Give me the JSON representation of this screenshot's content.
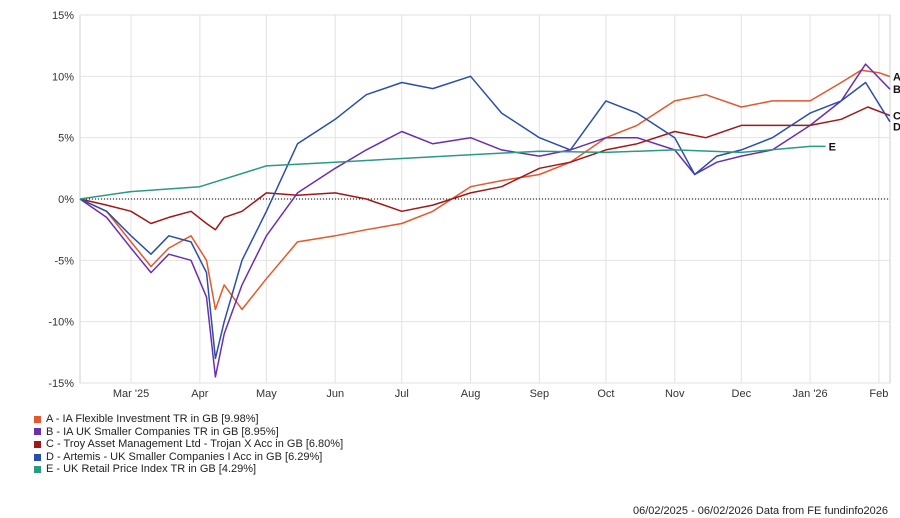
{
  "chart_data": {
    "type": "line",
    "ylim": [
      -15,
      15
    ],
    "yticks": [
      -15,
      -10,
      -5,
      0,
      5,
      10,
      15
    ],
    "ytick_labels": [
      "-15%",
      "-10%",
      "-5%",
      "0%",
      "5%",
      "10%",
      "15%"
    ],
    "xlim": [
      "2025-02-06",
      "2026-02-06"
    ],
    "xticks": [
      {
        "date": "2025-03-01",
        "label": "Mar '25"
      },
      {
        "date": "2025-04-01",
        "label": "Apr"
      },
      {
        "date": "2025-05-01",
        "label": "May"
      },
      {
        "date": "2025-06-01",
        "label": "Jun"
      },
      {
        "date": "2025-07-01",
        "label": "Jul"
      },
      {
        "date": "2025-08-01",
        "label": "Aug"
      },
      {
        "date": "2025-09-01",
        "label": "Sep"
      },
      {
        "date": "2025-10-01",
        "label": "Oct"
      },
      {
        "date": "2025-11-01",
        "label": "Nov"
      },
      {
        "date": "2025-12-01",
        "label": "Dec"
      },
      {
        "date": "2026-01-01",
        "label": "Jan '26"
      },
      {
        "date": "2026-02-01",
        "label": "Feb"
      }
    ],
    "grid": true,
    "legend_position": "bottom-left",
    "series": [
      {
        "name": "A - IA Flexible Investment TR in GB [9.98%]",
        "letter": "A",
        "color": "#e3582c",
        "x": [
          "2025-02-06",
          "2025-02-18",
          "2025-03-01",
          "2025-03-10",
          "2025-03-18",
          "2025-03-28",
          "2025-04-04",
          "2025-04-08",
          "2025-04-12",
          "2025-04-20",
          "2025-05-01",
          "2025-05-15",
          "2025-06-01",
          "2025-06-15",
          "2025-07-01",
          "2025-07-15",
          "2025-08-01",
          "2025-08-15",
          "2025-09-01",
          "2025-09-15",
          "2025-10-01",
          "2025-10-15",
          "2025-11-01",
          "2025-11-15",
          "2025-12-01",
          "2025-12-15",
          "2026-01-01",
          "2026-01-15",
          "2026-01-24",
          "2026-02-01",
          "2026-02-06"
        ],
        "y": [
          0,
          -1,
          -3.5,
          -5.5,
          -4,
          -3,
          -5,
          -9,
          -7,
          -9,
          -6.5,
          -3.5,
          -3,
          -2.5,
          -2,
          -1,
          1,
          1.5,
          2,
          3,
          5,
          6,
          8,
          8.5,
          7.5,
          8,
          8,
          9.5,
          10.5,
          10.3,
          9.98
        ]
      },
      {
        "name": "B - IA UK Smaller Companies TR in GB [8.95%]",
        "letter": "B",
        "color": "#6a2fb0",
        "x": [
          "2025-02-06",
          "2025-02-18",
          "2025-03-01",
          "2025-03-10",
          "2025-03-18",
          "2025-03-28",
          "2025-04-04",
          "2025-04-08",
          "2025-04-12",
          "2025-04-20",
          "2025-05-01",
          "2025-05-15",
          "2025-06-01",
          "2025-06-15",
          "2025-07-01",
          "2025-07-15",
          "2025-08-01",
          "2025-08-15",
          "2025-09-01",
          "2025-09-15",
          "2025-10-01",
          "2025-10-15",
          "2025-11-01",
          "2025-11-10",
          "2025-11-20",
          "2025-12-01",
          "2025-12-15",
          "2026-01-01",
          "2026-01-15",
          "2026-01-26",
          "2026-02-06"
        ],
        "y": [
          0,
          -1.5,
          -4,
          -6,
          -4.5,
          -5,
          -8,
          -14.5,
          -11,
          -7,
          -3,
          0.5,
          2.5,
          4,
          5.5,
          4.5,
          5,
          4,
          3.5,
          4,
          5,
          5,
          4,
          2,
          3,
          3.5,
          4,
          6,
          8,
          11,
          8.95
        ]
      },
      {
        "name": "C - Troy Asset Management Ltd - Trojan X Acc in GB [6.80%]",
        "letter": "C",
        "color": "#a01818",
        "x": [
          "2025-02-06",
          "2025-02-18",
          "2025-03-01",
          "2025-03-10",
          "2025-03-18",
          "2025-03-28",
          "2025-04-04",
          "2025-04-08",
          "2025-04-12",
          "2025-04-20",
          "2025-05-01",
          "2025-05-15",
          "2025-06-01",
          "2025-06-15",
          "2025-07-01",
          "2025-07-15",
          "2025-08-01",
          "2025-08-15",
          "2025-09-01",
          "2025-09-15",
          "2025-10-01",
          "2025-10-15",
          "2025-11-01",
          "2025-11-15",
          "2025-12-01",
          "2025-12-15",
          "2026-01-01",
          "2026-01-15",
          "2026-01-27",
          "2026-02-06"
        ],
        "y": [
          0,
          -0.5,
          -1,
          -2,
          -1.5,
          -1,
          -2,
          -2.5,
          -1.5,
          -1,
          0.5,
          0.3,
          0.5,
          0,
          -1,
          -0.5,
          0.5,
          1,
          2.5,
          3,
          4,
          4.5,
          5.5,
          5,
          6,
          6,
          6,
          6.5,
          7.5,
          6.8
        ]
      },
      {
        "name": "D - Artemis - UK Smaller Companies I Acc in GB [6.29%]",
        "letter": "D",
        "color": "#2a4fa8",
        "x": [
          "2025-02-06",
          "2025-02-18",
          "2025-03-01",
          "2025-03-10",
          "2025-03-18",
          "2025-03-28",
          "2025-04-04",
          "2025-04-08",
          "2025-04-12",
          "2025-04-20",
          "2025-05-01",
          "2025-05-15",
          "2025-06-01",
          "2025-06-15",
          "2025-07-01",
          "2025-07-15",
          "2025-08-01",
          "2025-08-15",
          "2025-09-01",
          "2025-09-15",
          "2025-10-01",
          "2025-10-15",
          "2025-11-01",
          "2025-11-10",
          "2025-11-20",
          "2025-12-01",
          "2025-12-15",
          "2026-01-01",
          "2026-01-15",
          "2026-01-26",
          "2026-02-06"
        ],
        "y": [
          0,
          -1,
          -3,
          -4.5,
          -3,
          -3.5,
          -6,
          -13,
          -10,
          -5,
          -1,
          4.5,
          6.5,
          8.5,
          9.5,
          9,
          10,
          7,
          5,
          4,
          8,
          7,
          5,
          2,
          3.5,
          4,
          5,
          7,
          8,
          9.5,
          6.29
        ]
      },
      {
        "name": "E - UK Retail Price Index TR in GB [4.29%]",
        "letter": "E",
        "color": "#2a9a82",
        "x": [
          "2025-02-06",
          "2025-03-01",
          "2025-04-01",
          "2025-05-01",
          "2025-06-01",
          "2025-07-01",
          "2025-08-01",
          "2025-09-01",
          "2025-10-01",
          "2025-11-01",
          "2025-12-01",
          "2026-01-01",
          "2026-01-08"
        ],
        "y": [
          0,
          0.6,
          1,
          2.7,
          3,
          3.3,
          3.6,
          3.9,
          3.8,
          4,
          3.8,
          4.29,
          4.29
        ]
      }
    ]
  },
  "footer": {
    "date_range": "06/02/2025 - 06/02/2026",
    "source": "Data from FE fundinfo2026"
  }
}
